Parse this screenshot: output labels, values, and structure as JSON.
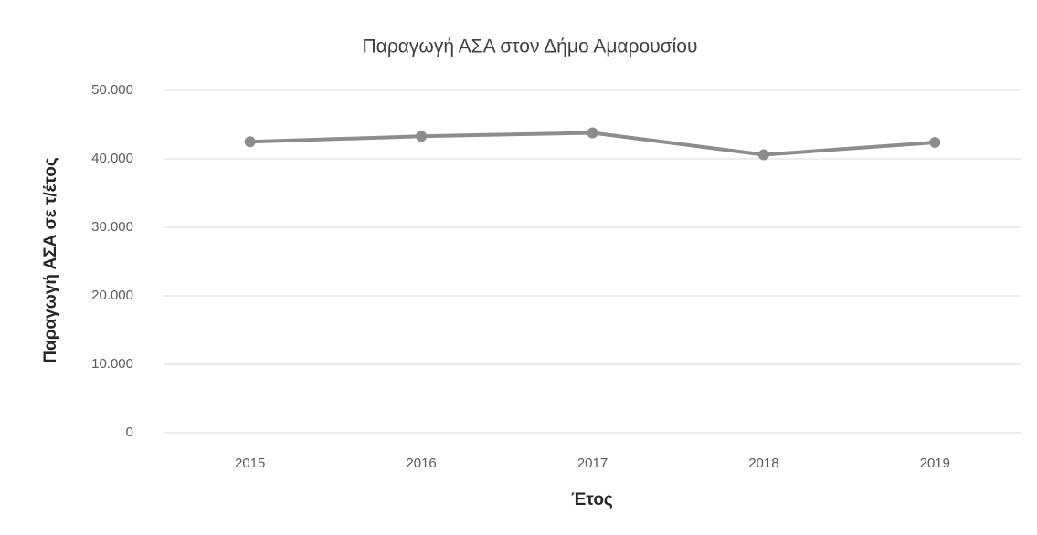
{
  "chart_data": {
    "type": "line",
    "title": "Παραγωγή ΑΣΑ στον Δήμο Αμαρουσίου",
    "x_label": "Έτος",
    "y_label": "Παραγωγή ΑΣΑ σε τ/έτος",
    "categories": [
      "2015",
      "2016",
      "2017",
      "2018",
      "2019"
    ],
    "series": [
      {
        "name": "Παραγωγή ΑΣΑ",
        "color": "#8c8c8c",
        "values": [
          42500,
          43300,
          43800,
          40600,
          42400
        ]
      }
    ],
    "ylim": [
      0,
      50000
    ],
    "yticks": [
      0,
      {
        "value": 10000,
        "label": "10.000"
      },
      {
        "value": 20000,
        "label": "20.000"
      },
      {
        "value": 30000,
        "label": "30.000"
      },
      {
        "value": 40000,
        "label": "40.000"
      },
      {
        "value": 50000,
        "label": "50.000"
      }
    ],
    "grid": true
  }
}
